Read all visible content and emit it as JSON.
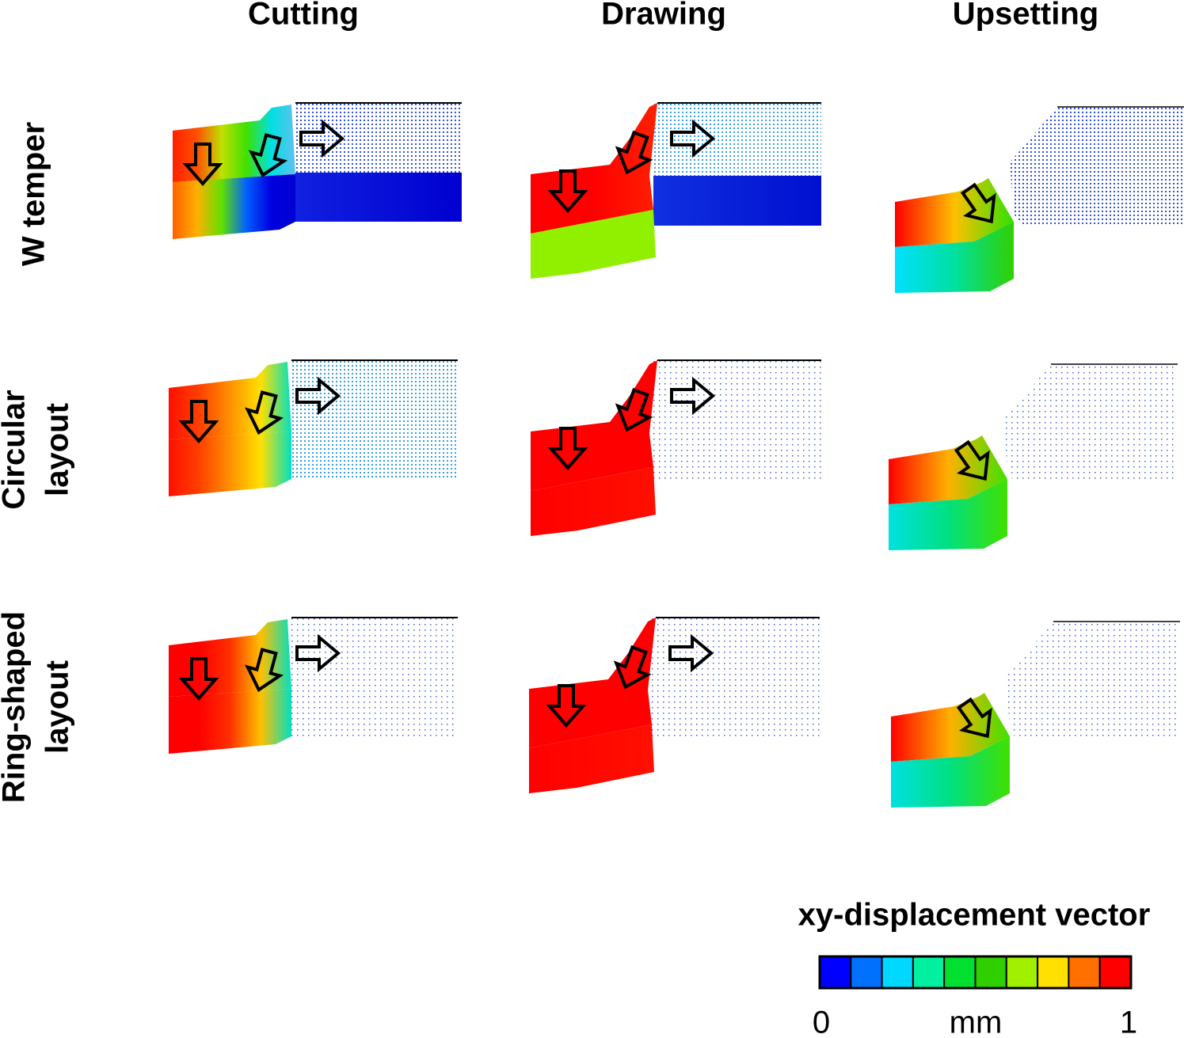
{
  "columns": [
    "Cutting",
    "Drawing",
    "Upsetting"
  ],
  "rows": [
    {
      "lines": [
        "W temper"
      ]
    },
    {
      "lines": [
        "Circular",
        "layout"
      ]
    },
    {
      "lines": [
        "Ring-shaped",
        "layout"
      ]
    }
  ],
  "colorbar": {
    "title": "xy-displacement vector",
    "colors": [
      "#0000ff",
      "#0070ff",
      "#00d8ff",
      "#00f0a0",
      "#00e030",
      "#30d000",
      "#a0f000",
      "#ffe000",
      "#ff7000",
      "#ff0000"
    ],
    "min": 0,
    "unit": "mm",
    "max": 1
  }
}
